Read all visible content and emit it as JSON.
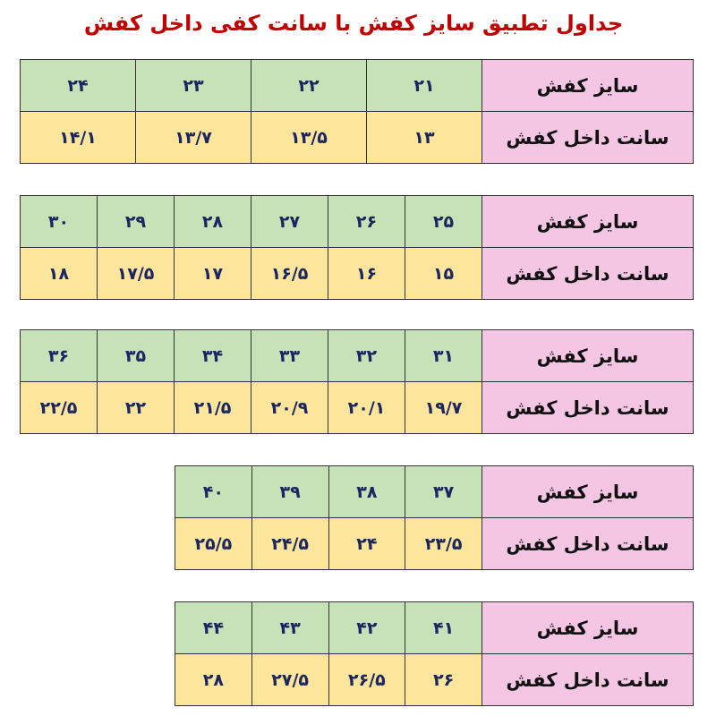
{
  "title": "جداول تطبیق سایز کفش با سانت کفی داخل کفش",
  "row_labels": {
    "size": "سایز کفش",
    "cm": "سانت داخل کفش"
  },
  "colors": {
    "title": "#c00000",
    "label_bg": "#f4c6e4",
    "size_bg": "#c8e2b8",
    "cm_bg": "#fde59c",
    "value_text": "#1b2660"
  },
  "tables": [
    {
      "sizes": [
        "۲۱",
        "۲۲",
        "۲۳",
        "۲۴"
      ],
      "cm": [
        "۱۳",
        "۱۳/۵",
        "۱۳/۷",
        "۱۴/۱"
      ]
    },
    {
      "sizes": [
        "۲۵",
        "۲۶",
        "۲۷",
        "۲۸",
        "۲۹",
        "۳۰"
      ],
      "cm": [
        "۱۵",
        "۱۶",
        "۱۶/۵",
        "۱۷",
        "۱۷/۵",
        "۱۸"
      ]
    },
    {
      "sizes": [
        "۳۱",
        "۳۲",
        "۳۳",
        "۳۴",
        "۳۵",
        "۳۶"
      ],
      "cm": [
        "۱۹/۷",
        "۲۰/۱",
        "۲۰/۹",
        "۲۱/۵",
        "۲۲",
        "۲۲/۵"
      ]
    },
    {
      "sizes": [
        "۳۷",
        "۳۸",
        "۳۹",
        "۴۰"
      ],
      "cm": [
        "۲۳/۵",
        "۲۴",
        "۲۴/۵",
        "۲۵/۵"
      ]
    },
    {
      "sizes": [
        "۴۱",
        "۴۲",
        "۴۳",
        "۴۴"
      ],
      "cm": [
        "۲۶",
        "۲۶/۵",
        "۲۷/۵",
        "۲۸"
      ]
    }
  ]
}
